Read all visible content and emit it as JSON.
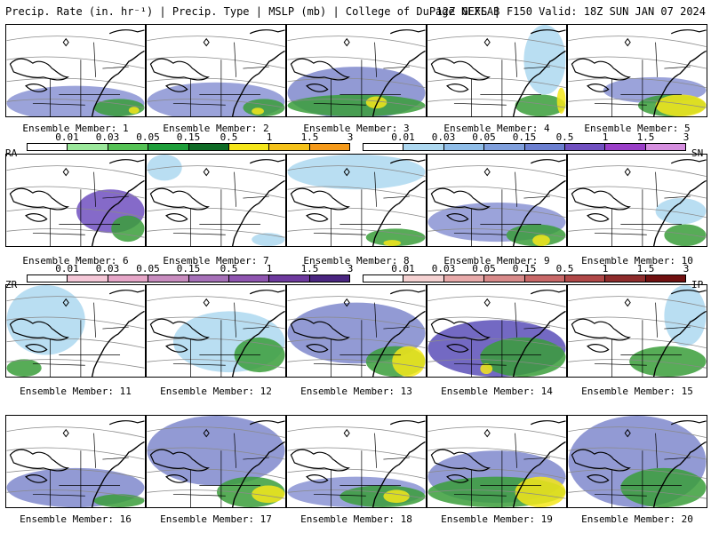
{
  "header": {
    "title": "Precip. Rate (in. hr⁻¹) | Precip. Type | MSLP (mb) | College of DuPage NEXLAB",
    "valid": "12Z GEFS | F150 Valid: 18Z SUN JAN 07 2024"
  },
  "legends": [
    {
      "left": {
        "type": "RA",
        "ticks": [
          "0.01",
          "0.03",
          "0.05",
          "0.15",
          "0.5",
          "1",
          "1.5",
          "3"
        ],
        "colors": [
          "#ffffff",
          "#9be89b",
          "#55c255",
          "#1e9e3a",
          "#0f6b26",
          "#f5e61a",
          "#f5c21a",
          "#f59a1a"
        ]
      },
      "right": {
        "type": "SN",
        "ticks": [
          "0.01",
          "0.03",
          "0.05",
          "0.15",
          "0.5",
          "1",
          "1.5",
          "3"
        ],
        "colors": [
          "#ffffff",
          "#add8f0",
          "#8fbde8",
          "#7f9fdc",
          "#6b7fd0",
          "#7050c0",
          "#9a3fc8",
          "#d68fe0"
        ]
      }
    },
    {
      "left": {
        "type": "ZR",
        "ticks": [
          "0.01",
          "0.03",
          "0.05",
          "0.15",
          "0.5",
          "1",
          "1.5",
          "3"
        ],
        "colors": [
          "#ffffff",
          "#f5c8d8",
          "#e6a6c8",
          "#c88cbf",
          "#a670b8",
          "#8f55b0",
          "#6e3a9e",
          "#4a2580"
        ]
      },
      "right": {
        "type": "IP",
        "ticks": [
          "0.01",
          "0.03",
          "0.05",
          "0.15",
          "0.5",
          "1",
          "1.5",
          "3"
        ],
        "colors": [
          "#ffffff",
          "#f5d2d2",
          "#e8aaaa",
          "#d88a8a",
          "#c86868",
          "#b04848",
          "#8e2c2c",
          "#701010"
        ]
      }
    }
  ],
  "members": [
    {
      "label": "Ensemble Member: 1"
    },
    {
      "label": "Ensemble Member: 2"
    },
    {
      "label": "Ensemble Member: 3"
    },
    {
      "label": "Ensemble Member: 4"
    },
    {
      "label": "Ensemble Member: 5"
    },
    {
      "label": "Ensemble Member: 6"
    },
    {
      "label": "Ensemble Member: 7"
    },
    {
      "label": "Ensemble Member: 8"
    },
    {
      "label": "Ensemble Member: 9"
    },
    {
      "label": "Ensemble Member: 10"
    },
    {
      "label": "Ensemble Member: 11"
    },
    {
      "label": "Ensemble Member: 12"
    },
    {
      "label": "Ensemble Member: 13"
    },
    {
      "label": "Ensemble Member: 14"
    },
    {
      "label": "Ensemble Member: 15"
    },
    {
      "label": "Ensemble Member: 16"
    },
    {
      "label": "Ensemble Member: 17"
    },
    {
      "label": "Ensemble Member: 18"
    },
    {
      "label": "Ensemble Member: 19"
    },
    {
      "label": "Ensemble Member: 20"
    }
  ]
}
